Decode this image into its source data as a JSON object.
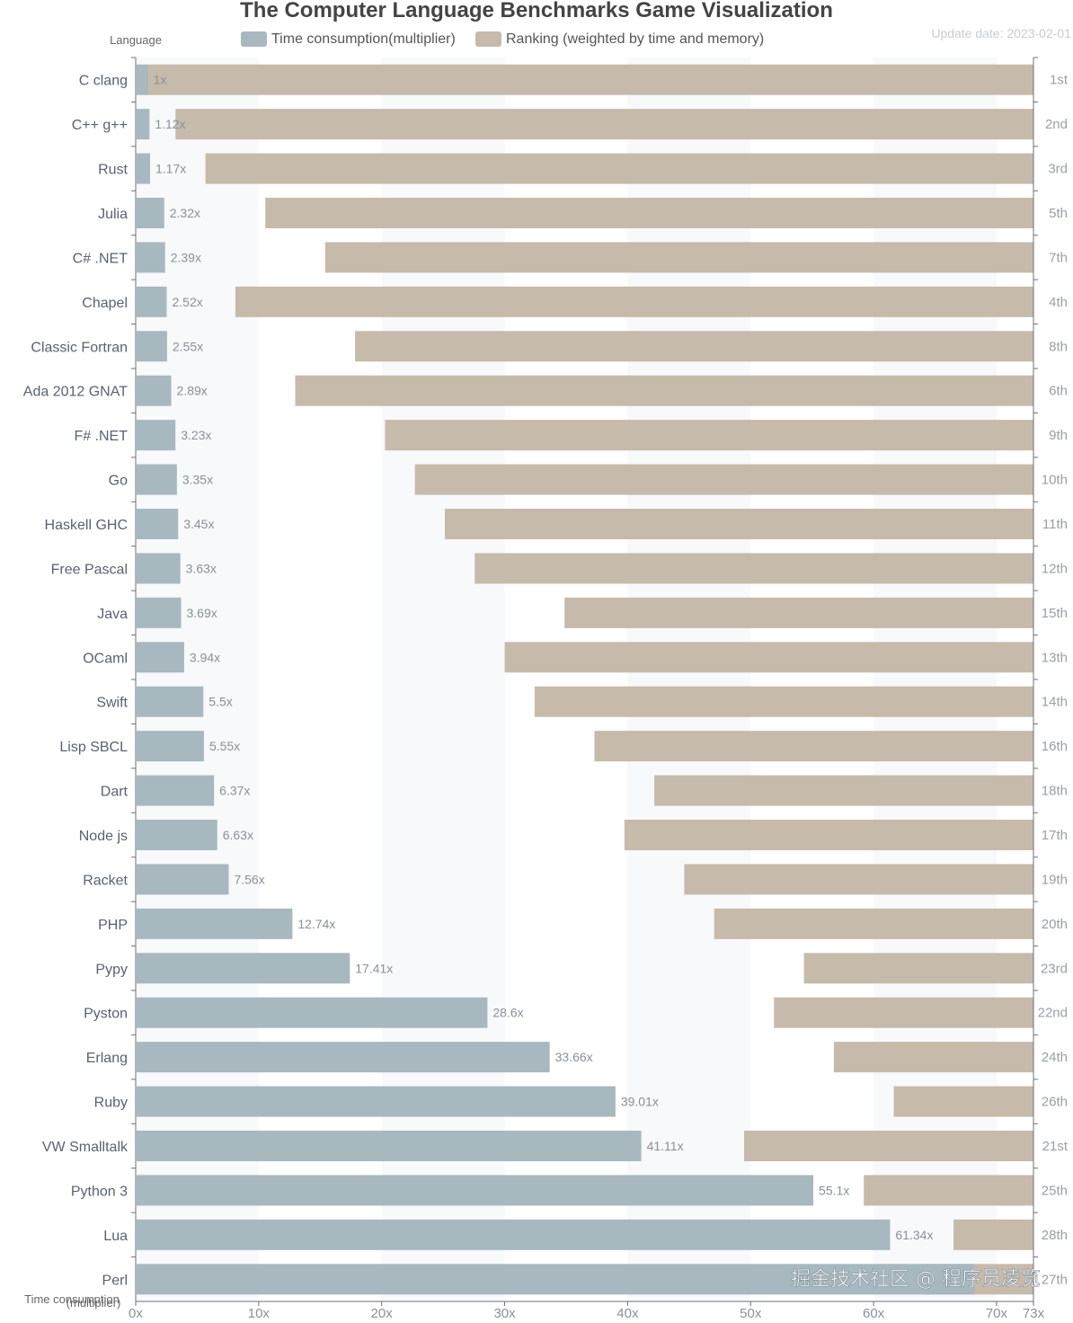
{
  "chart_data": {
    "type": "bar",
    "title": "The Computer Language Benchmarks Game Visualization",
    "update_date": "Update date: 2023-02-01",
    "y_axis_name": "Language",
    "x_axis_name": "Time consumption",
    "x_axis_name_sub": "(multiplier)",
    "xlim": [
      0,
      73
    ],
    "x_ticks": [
      {
        "value": 0,
        "label": "0x"
      },
      {
        "value": 10,
        "label": "10x"
      },
      {
        "value": 20,
        "label": "20x"
      },
      {
        "value": 30,
        "label": "30x"
      },
      {
        "value": 40,
        "label": "40x"
      },
      {
        "value": 50,
        "label": "50x"
      },
      {
        "value": 60,
        "label": "60x"
      },
      {
        "value": 70,
        "label": "70x"
      },
      {
        "value": 73,
        "label": "73x"
      }
    ],
    "legend": {
      "position": "top",
      "entries": [
        {
          "name": "Time consumption(multiplier)",
          "color": "#a7b8bf"
        },
        {
          "name": "Ranking (weighted by time and memory)",
          "color": "#c6baab"
        }
      ]
    },
    "grid": false,
    "categories": [
      "C clang",
      "C++ g++",
      "Rust",
      "Julia",
      "C# .NET",
      "Chapel",
      "Classic Fortran",
      "Ada 2012 GNAT",
      "F# .NET",
      "Go",
      "Haskell GHC",
      "Free Pascal",
      "Java",
      "OCaml",
      "Swift",
      "Lisp SBCL",
      "Dart",
      "Node js",
      "Racket",
      "PHP",
      "Pypy",
      "Pyston",
      "Erlang",
      "Ruby",
      "VW Smalltalk",
      "Python 3",
      "Lua",
      "Perl"
    ],
    "series": [
      {
        "name": "Time consumption(multiplier)",
        "color": "#a7b8bf",
        "values": [
          1,
          1.12,
          1.17,
          2.32,
          2.39,
          2.52,
          2.55,
          2.89,
          3.23,
          3.35,
          3.45,
          3.63,
          3.69,
          3.94,
          5.5,
          5.55,
          6.37,
          6.63,
          7.56,
          12.74,
          17.41,
          28.6,
          33.66,
          39.01,
          41.11,
          55.1,
          61.34,
          68.2
        ],
        "labels": [
          "1x",
          "1.12x",
          "1.17x",
          "2.32x",
          "2.39x",
          "2.52x",
          "2.55x",
          "2.89x",
          "3.23x",
          "3.35x",
          "3.45x",
          "3.63x",
          "3.69x",
          "3.94x",
          "5.5x",
          "5.55x",
          "6.37x",
          "6.63x",
          "7.56x",
          "12.74x",
          "17.41x",
          "28.6x",
          "33.66x",
          "39.01x",
          "41.11x",
          "55.1x",
          "61.34x",
          ""
        ]
      },
      {
        "name": "Ranking (weighted by time and memory)",
        "color": "#c6baab",
        "ranks": [
          1,
          2,
          3,
          5,
          7,
          4,
          8,
          6,
          9,
          10,
          11,
          12,
          15,
          13,
          14,
          16,
          18,
          17,
          19,
          20,
          23,
          22,
          24,
          26,
          21,
          25,
          28,
          27
        ],
        "labels": [
          "1st",
          "2nd",
          "3rd",
          "5th",
          "7th",
          "4th",
          "8th",
          "6th",
          "9th",
          "10th",
          "11th",
          "12th",
          "15th",
          "13th",
          "14th",
          "16th",
          "18th",
          "17th",
          "19th",
          "20th",
          "23rd",
          "22nd",
          "24th",
          "26th",
          "21st",
          "25th",
          "28th",
          "27th"
        ],
        "max_rank": 30
      }
    ]
  },
  "watermark": "掘金技术社区 @ 程序员凌览"
}
